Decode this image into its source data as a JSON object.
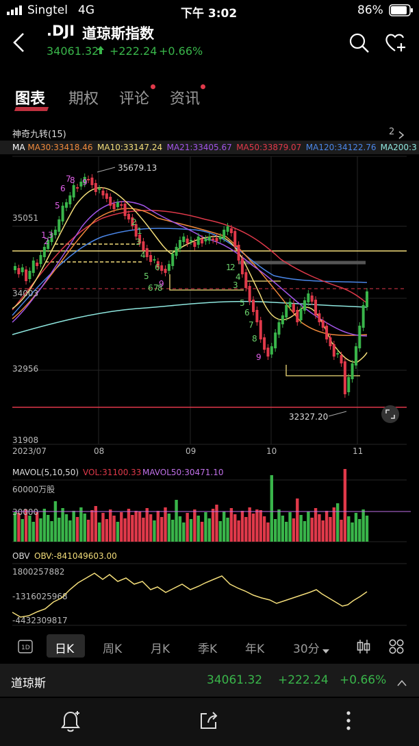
{
  "status": {
    "carrier": "Singtel",
    "network": "4G",
    "time": "下午 3:02",
    "battery": "86%"
  },
  "header": {
    "symbol": ".DJI",
    "name": "道琼斯指数",
    "price": "34061.32",
    "change": "+222.24",
    "change_pct": "+0.66%"
  },
  "tabs": [
    {
      "label": "图表",
      "active": true,
      "dot": false
    },
    {
      "label": "期权",
      "active": false,
      "dot": false
    },
    {
      "label": "评论",
      "active": false,
      "dot": true
    },
    {
      "label": "资讯",
      "active": false,
      "dot": true
    }
  ],
  "indicator": {
    "name": "神奇九转(15)",
    "count": "2"
  },
  "ma_legend": [
    {
      "label": "MA",
      "color": "#ffffff"
    },
    {
      "label": "MA30:33418.46",
      "color": "#f08a3c"
    },
    {
      "label": "MA10:33147.24",
      "color": "#f4de7a"
    },
    {
      "label": "MA21:33405.67",
      "color": "#a255e8"
    },
    {
      "label": "MA50:33879.07",
      "color": "#e0394a"
    },
    {
      "label": "MA120:34122.76",
      "color": "#4a86e8"
    },
    {
      "label": "MA200:3",
      "color": "#8fe8e0"
    }
  ],
  "price_axis": {
    "l1": "35051",
    "l2": "34003",
    "l3": "32956",
    "l4": "31908"
  },
  "annotations": {
    "high": "35679.13",
    "low": "32327.20"
  },
  "date_axis": {
    "start": "2023/07",
    "d1": "08",
    "d2": "09",
    "d3": "10",
    "d4": "11"
  },
  "mavol": {
    "title": "MAVOL(5,10,50)",
    "vol": "VOL:31100.33",
    "mavol50": "MAVOL50:30471.10",
    "axis_top": "60000万股",
    "axis_mid": "30000"
  },
  "obv": {
    "title": "OBV",
    "value": "OBV:-841049603.00",
    "a1": "1800257882",
    "a2": "-1316025968",
    "a3": "-4432309817"
  },
  "timeframes": [
    {
      "label": "日K",
      "active": true
    },
    {
      "label": "周K",
      "active": false
    },
    {
      "label": "月K",
      "active": false
    },
    {
      "label": "季K",
      "active": false
    },
    {
      "label": "年K",
      "active": false
    },
    {
      "label": "30分",
      "active": false
    }
  ],
  "quote_bar": {
    "name": "道琼斯",
    "price": "34061.32",
    "change": "+222.24",
    "pct": "+0.66%"
  },
  "colors": {
    "up": "#39b54a",
    "down": "#e0394a",
    "yellow": "#f4de7a"
  }
}
